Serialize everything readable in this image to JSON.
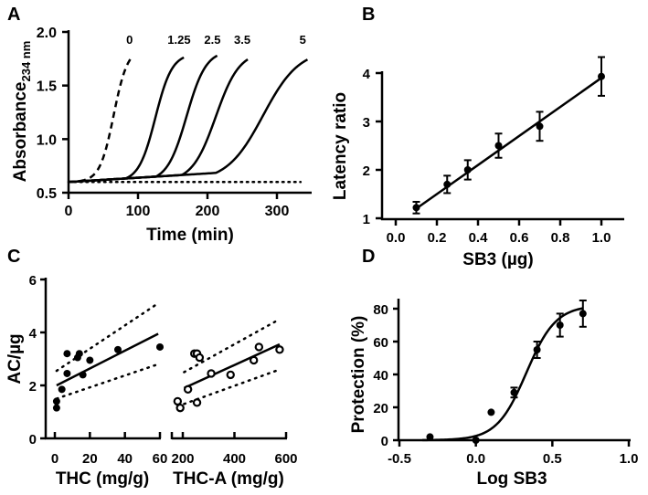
{
  "chart_data": [
    {
      "panel": "A",
      "type": "line",
      "title": "",
      "xlabel": "Time (min)",
      "ylabel": "Absorbance",
      "ylabel_sub": "234 nm",
      "xlim": [
        0,
        350
      ],
      "ylim": [
        0.5,
        2.0
      ],
      "xticks": [
        "0",
        "100",
        "200",
        "300"
      ],
      "yticks": [
        "0.5",
        "1.0",
        "1.5",
        "2.0"
      ],
      "series": [
        {
          "name": "0",
          "style": "dashed",
          "baseline": 0.6,
          "plateau": 1.85,
          "midpoint": 65,
          "width": 10,
          "end": 93
        },
        {
          "name": "1.25",
          "style": "solid",
          "baseline": 0.6,
          "plateau": 1.8,
          "midpoint": 125,
          "width": 12,
          "end": 167
        },
        {
          "name": "2.5",
          "style": "solid",
          "baseline": 0.6,
          "plateau": 1.83,
          "midpoint": 170,
          "width": 14,
          "end": 215
        },
        {
          "name": "3.5",
          "style": "solid",
          "baseline": 0.6,
          "plateau": 1.82,
          "midpoint": 212,
          "width": 17,
          "end": 258
        },
        {
          "name": "5",
          "style": "solid",
          "baseline": 0.6,
          "plateau": 1.84,
          "midpoint": 280,
          "width": 26,
          "end": 345
        },
        {
          "name": "",
          "style": "dotted",
          "baseline": 0.6,
          "plateau": 0.6,
          "midpoint": 0,
          "width": 1,
          "end": 335
        }
      ]
    },
    {
      "panel": "B",
      "type": "scatter",
      "xlabel": "SB3 (µg)",
      "ylabel": "Latency ratio",
      "xlim": [
        0,
        1.0
      ],
      "ylim": [
        1,
        4
      ],
      "xticks": [
        "0.0",
        "0.2",
        "0.4",
        "0.6",
        "0.8",
        "1.0"
      ],
      "yticks": [
        "1",
        "2",
        "3",
        "4"
      ],
      "x": [
        0.1,
        0.25,
        0.35,
        0.5,
        0.7,
        1.0
      ],
      "y": [
        1.22,
        1.7,
        2.0,
        2.5,
        2.9,
        3.93
      ],
      "err": [
        0.12,
        0.18,
        0.2,
        0.25,
        0.3,
        0.4
      ],
      "fit": {
        "x": [
          0.1,
          1.0
        ],
        "y": [
          1.2,
          3.9
        ]
      }
    },
    {
      "panel": "C",
      "type": "scatter",
      "ylabel": "AC/µg",
      "ylim": [
        0,
        6
      ],
      "yticks": [
        "0",
        "2",
        "4",
        "6"
      ],
      "subplots": [
        {
          "xlabel": "THC (mg/g)",
          "xlim": [
            0,
            60
          ],
          "xticks": [
            "0",
            "20",
            "40",
            "60"
          ],
          "marker": "filled",
          "x": [
            1,
            1,
            4,
            7,
            7,
            13,
            14,
            16,
            20,
            36,
            60
          ],
          "y": [
            1.15,
            1.4,
            1.85,
            3.2,
            2.45,
            3.05,
            3.2,
            2.4,
            2.95,
            3.35,
            3.45
          ],
          "fit": {
            "x": [
              1,
              59
            ],
            "y": [
              2.0,
              3.95
            ]
          },
          "ci_upper": {
            "x": [
              1,
              59
            ],
            "y": [
              2.55,
              5.1
            ]
          },
          "ci_lower": {
            "x": [
              1,
              59
            ],
            "y": [
              1.5,
              2.8
            ]
          }
        },
        {
          "xlabel": "THC-A (mg/g)",
          "xlim": [
            175,
            600
          ],
          "xticks": [
            "200",
            "400",
            "600"
          ],
          "marker": "open",
          "x": [
            180,
            190,
            220,
            245,
            255,
            265,
            255,
            310,
            385,
            475,
            495,
            575
          ],
          "y": [
            1.4,
            1.15,
            1.85,
            3.2,
            3.2,
            3.05,
            1.35,
            2.45,
            2.4,
            2.95,
            3.45,
            3.35
          ],
          "fit": {
            "x": [
              205,
              575
            ],
            "y": [
              1.9,
              3.55
            ]
          },
          "ci_upper": {
            "x": [
              205,
              575
            ],
            "y": [
              2.5,
              4.5
            ]
          },
          "ci_lower": {
            "x": [
              205,
              575
            ],
            "y": [
              1.3,
              2.6
            ]
          }
        }
      ]
    },
    {
      "panel": "D",
      "type": "scatter",
      "xlabel": "Log SB3",
      "ylabel": "Protection (%)",
      "xlim": [
        -0.5,
        1.0
      ],
      "ylim": [
        0,
        85
      ],
      "xticks": [
        "-0.5",
        "0.0",
        "0.5",
        "1.0"
      ],
      "yticks": [
        "0",
        "20",
        "40",
        "60",
        "80"
      ],
      "x": [
        -0.3,
        0.0,
        0.1,
        0.25,
        0.4,
        0.55,
        0.7
      ],
      "y": [
        2,
        0,
        17,
        29,
        55,
        70,
        77
      ],
      "err": [
        0,
        0,
        0,
        3,
        5,
        7,
        8
      ],
      "fit": {
        "type": "sigmoid",
        "top": 82,
        "logEC50": 0.33,
        "hill": 4.5,
        "xmin": -0.35,
        "xmax": 0.7
      }
    }
  ],
  "panel_labels": [
    "A",
    "B",
    "C",
    "D"
  ]
}
